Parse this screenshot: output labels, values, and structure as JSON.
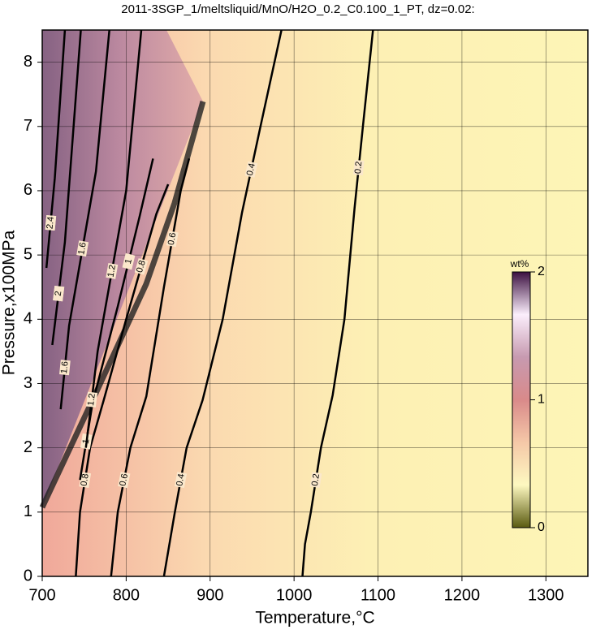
{
  "chart_data": {
    "type": "contour",
    "title": "2011-3SGP_1/meltsliquid/MnO/H2O_0.2_C0.100_1_PT, dz=0.02:",
    "x_label": "Temperature,°C",
    "y_label": "Pressure,x100MPa",
    "xlim": [
      700,
      1350
    ],
    "ylim": [
      0,
      8.5
    ],
    "xticks": [
      700,
      800,
      900,
      1000,
      1100,
      1200,
      1300
    ],
    "yticks": [
      0,
      1,
      2,
      3,
      4,
      5,
      6,
      7,
      8
    ],
    "grid": true,
    "color": "#000000",
    "contours": [
      {
        "level": 0.2,
        "x": [
          1010,
          1013,
          1020,
          1032,
          1046,
          1060,
          1072,
          1082,
          1094
        ],
        "y": [
          0,
          0.5,
          1,
          2,
          2.82,
          4,
          5.72,
          7,
          8.5
        ]
      },
      {
        "level": 0.4,
        "x": [
          845,
          858,
          872,
          891,
          915,
          938,
          960,
          985
        ],
        "y": [
          0,
          1,
          2,
          2.74,
          4,
          5.66,
          7,
          8.5
        ]
      },
      {
        "level": 0.6,
        "x": [
          782,
          790,
          805,
          824,
          845,
          865,
          875
        ],
        "y": [
          0,
          1,
          2,
          2.8,
          4.5,
          6.0,
          6.5
        ]
      },
      {
        "level": 0.8,
        "x": [
          740,
          745,
          757,
          773,
          800,
          836,
          850
        ],
        "y": [
          0,
          1,
          2,
          2.73,
          4,
          5.64,
          6.1
        ]
      },
      {
        "level": 1,
        "x": [
          745,
          760,
          790,
          816,
          832
        ],
        "y": [
          1.5,
          2.7,
          4.2,
          5.6,
          6.5
        ]
      },
      {
        "level": 1.2,
        "x": [
          752,
          766,
          800,
          818
        ],
        "y": [
          2.0,
          3.5,
          6.0,
          8.5
        ]
      },
      {
        "level": 1.6,
        "x": [
          722,
          732,
          764,
          780
        ],
        "y": [
          2.6,
          3.9,
          6.3,
          8.5
        ]
      },
      {
        "level": 2,
        "x": [
          712,
          727,
          746
        ],
        "y": [
          3.6,
          5.2,
          8.5
        ]
      },
      {
        "level": 2.4,
        "x": [
          705,
          715,
          727
        ],
        "y": [
          4.8,
          6.2,
          8.5
        ]
      }
    ],
    "colorbar": {
      "label": "wt%",
      "lim": [
        0,
        2
      ],
      "ticks": [
        0,
        1,
        2
      ],
      "colors": [
        "#5a5a10",
        "#fdf8c0",
        "#f5c8a8",
        "#d98a8a",
        "#c79ab0",
        "#fbeefc",
        "#3c1040"
      ]
    }
  }
}
